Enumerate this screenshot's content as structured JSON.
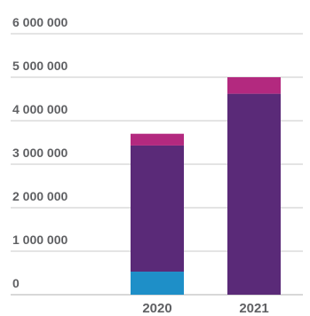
{
  "chart_data": {
    "type": "bar",
    "stacked": true,
    "categories": [
      "2020",
      "2021"
    ],
    "series": [
      {
        "color": "#1e8fc8",
        "values": [
          530000,
          0
        ]
      },
      {
        "color": "#5a2a78",
        "values": [
          2900000,
          4620000
        ]
      },
      {
        "color": "#b3297f",
        "values": [
          270000,
          380000
        ]
      }
    ],
    "yticks": [
      0,
      1000000,
      2000000,
      3000000,
      4000000,
      5000000,
      6000000
    ],
    "ytick_labels": [
      "0",
      "1 000 000",
      "2 000 000",
      "3 000 000",
      "4 000 000",
      "5 000 000",
      "6 000 000"
    ],
    "ylim": [
      0,
      6000000
    ],
    "grid": true,
    "legend": "none",
    "title": "",
    "xlabel": "",
    "ylabel": ""
  }
}
